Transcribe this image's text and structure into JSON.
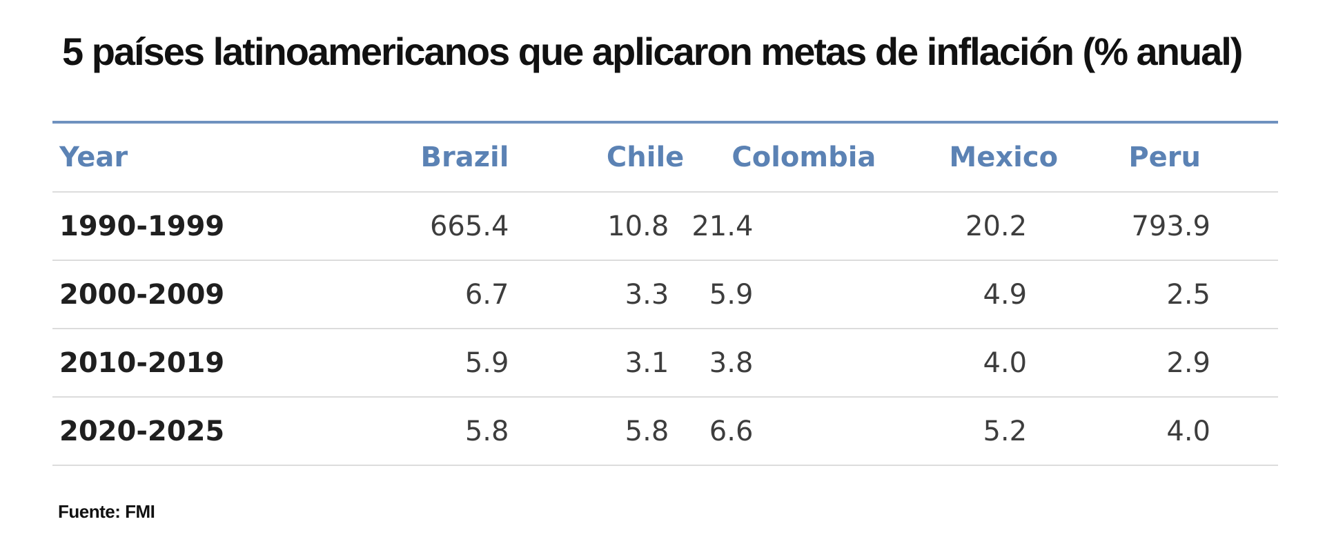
{
  "title": "5 países latinoamericanos que aplicaron metas de inflación (% anual)",
  "source": "Fuente: FMI",
  "colors": {
    "header_text": "#5b82b4",
    "top_rule": "#6f91bf",
    "row_border": "#dcdcdc",
    "title_text": "#111111"
  },
  "chart_data": {
    "type": "table",
    "title": "5 países latinoamericanos que aplicaron metas de inflación (% anual)",
    "columns": [
      "Year",
      "Brazil",
      "Chile",
      "Colombia",
      "Mexico",
      "Peru"
    ],
    "rows": [
      [
        "1990-1999",
        "665.4",
        "10.8",
        "21.4",
        "20.2",
        "793.9"
      ],
      [
        "2000-2009",
        "6.7",
        "3.3",
        "5.9",
        "4.9",
        "2.5"
      ],
      [
        "2010-2019",
        "5.9",
        "3.1",
        "3.8",
        "4.0",
        "2.9"
      ],
      [
        "2020-2025",
        "5.8",
        "5.8",
        "6.6",
        "5.2",
        "4.0"
      ]
    ]
  }
}
